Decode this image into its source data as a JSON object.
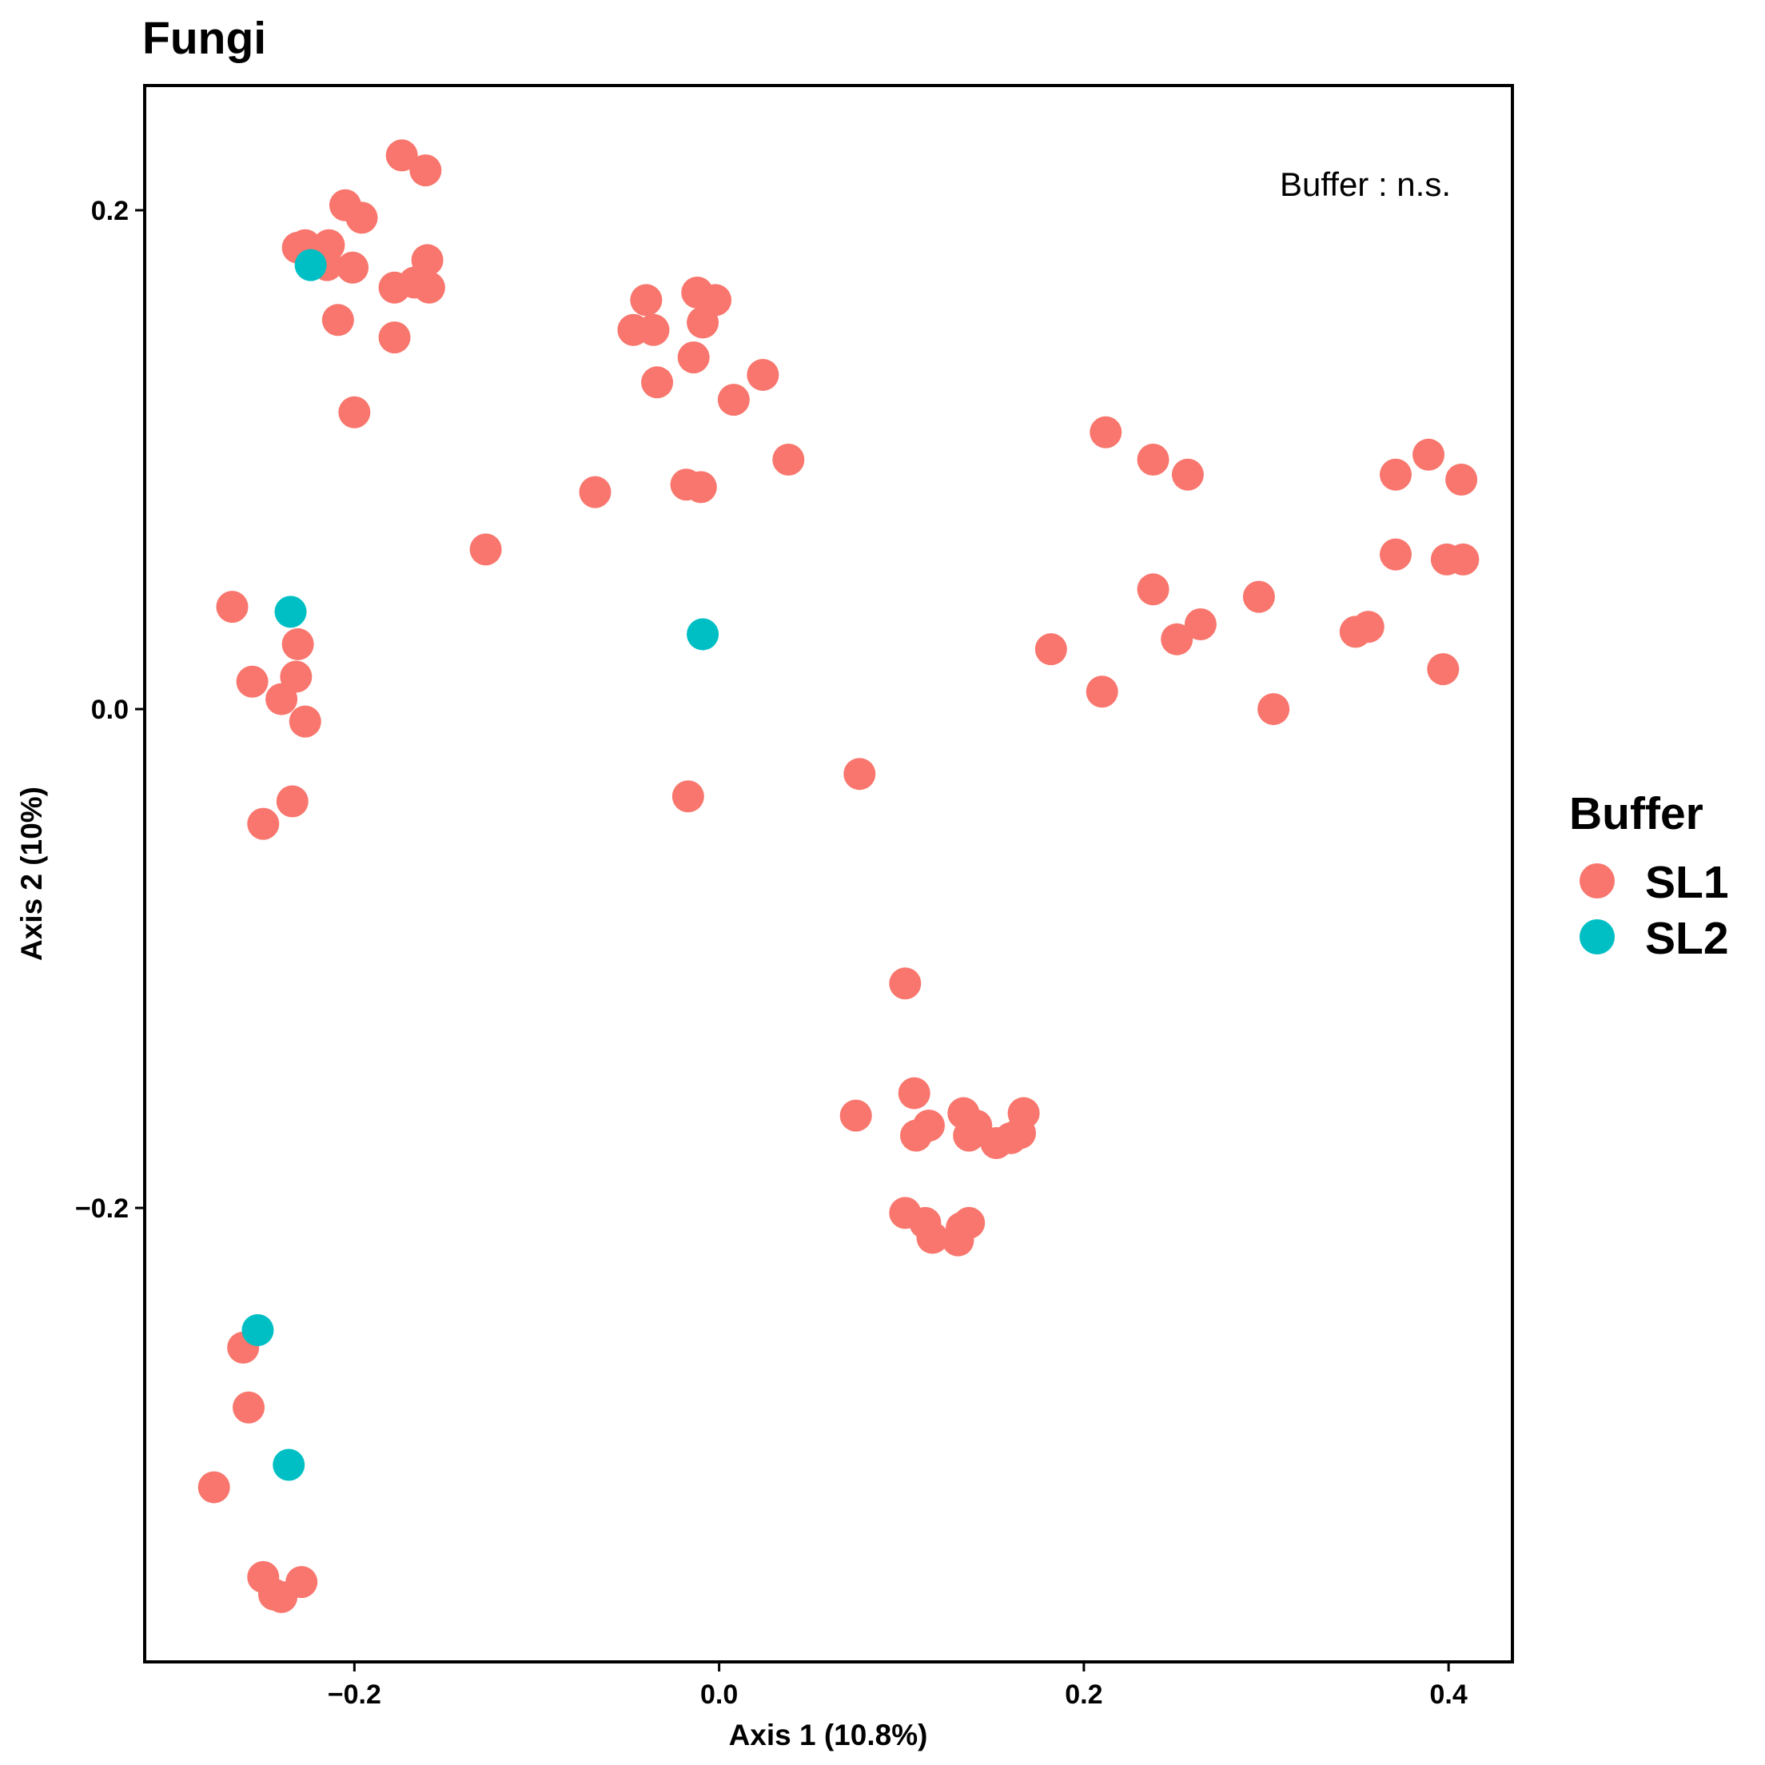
{
  "chart_data": {
    "type": "scatter",
    "title": "Fungi",
    "xlabel": "Axis 1 (10.8%)",
    "ylabel": "Axis 2 (10%)",
    "xlim": [
      -0.315,
      0.435
    ],
    "ylim": [
      -0.382,
      0.25
    ],
    "xticks": [
      -0.2,
      0.0,
      0.2,
      0.4
    ],
    "xtick_labels": [
      "−0.2",
      "0.0",
      "0.2",
      "0.4"
    ],
    "yticks": [
      0.2,
      0.0,
      -0.2
    ],
    "ytick_labels": [
      "0.2",
      "0.0",
      "−0.2"
    ],
    "grid": false,
    "annotation": "Buffer : n.s.",
    "legend": {
      "title": "Buffer",
      "placement": "right"
    },
    "series": [
      {
        "name": "SL1",
        "color": "#F8766D",
        "points": [
          [
            -0.174,
            0.222
          ],
          [
            -0.161,
            0.216
          ],
          [
            -0.205,
            0.202
          ],
          [
            -0.196,
            0.197
          ],
          [
            -0.227,
            0.186
          ],
          [
            -0.231,
            0.185
          ],
          [
            -0.214,
            0.186
          ],
          [
            -0.215,
            0.178
          ],
          [
            -0.201,
            0.177
          ],
          [
            -0.16,
            0.18
          ],
          [
            -0.178,
            0.169
          ],
          [
            -0.167,
            0.171
          ],
          [
            -0.159,
            0.169
          ],
          [
            -0.209,
            0.156
          ],
          [
            -0.178,
            0.149
          ],
          [
            -0.2,
            0.119
          ],
          [
            -0.012,
            0.167
          ],
          [
            -0.002,
            0.164
          ],
          [
            -0.04,
            0.164
          ],
          [
            -0.009,
            0.155
          ],
          [
            -0.047,
            0.152
          ],
          [
            -0.036,
            0.152
          ],
          [
            -0.014,
            0.141
          ],
          [
            0.024,
            0.134
          ],
          [
            -0.034,
            0.131
          ],
          [
            0.008,
            0.124
          ],
          [
            0.038,
            0.1
          ],
          [
            -0.068,
            0.087
          ],
          [
            -0.018,
            0.09
          ],
          [
            -0.01,
            0.089
          ],
          [
            -0.128,
            0.064
          ],
          [
            0.212,
            0.111
          ],
          [
            0.238,
            0.1
          ],
          [
            0.257,
            0.094
          ],
          [
            0.371,
            0.094
          ],
          [
            0.389,
            0.102
          ],
          [
            0.407,
            0.092
          ],
          [
            0.371,
            0.062
          ],
          [
            0.399,
            0.06
          ],
          [
            0.408,
            0.06
          ],
          [
            0.238,
            0.048
          ],
          [
            0.296,
            0.045
          ],
          [
            0.264,
            0.034
          ],
          [
            0.251,
            0.028
          ],
          [
            0.349,
            0.031
          ],
          [
            0.356,
            0.033
          ],
          [
            0.182,
            0.024
          ],
          [
            0.21,
            0.007
          ],
          [
            0.304,
            0.0
          ],
          [
            0.397,
            0.016
          ],
          [
            -0.267,
            0.041
          ],
          [
            -0.231,
            0.026
          ],
          [
            -0.256,
            0.011
          ],
          [
            -0.232,
            0.013
          ],
          [
            -0.24,
            0.004
          ],
          [
            -0.227,
            -0.005
          ],
          [
            -0.234,
            -0.037
          ],
          [
            -0.25,
            -0.046
          ],
          [
            0.077,
            -0.026
          ],
          [
            -0.017,
            -0.035
          ],
          [
            0.102,
            -0.11
          ],
          [
            0.107,
            -0.154
          ],
          [
            0.075,
            -0.163
          ],
          [
            0.134,
            -0.162
          ],
          [
            0.141,
            -0.167
          ],
          [
            0.137,
            -0.171
          ],
          [
            0.167,
            -0.162
          ],
          [
            0.165,
            -0.17
          ],
          [
            0.152,
            -0.174
          ],
          [
            0.16,
            -0.172
          ],
          [
            0.115,
            -0.167
          ],
          [
            0.108,
            -0.171
          ],
          [
            0.102,
            -0.202
          ],
          [
            0.113,
            -0.206
          ],
          [
            0.117,
            -0.212
          ],
          [
            0.131,
            -0.213
          ],
          [
            0.137,
            -0.206
          ],
          [
            0.133,
            -0.208
          ],
          [
            -0.261,
            -0.256
          ],
          [
            -0.258,
            -0.28
          ],
          [
            -0.277,
            -0.312
          ],
          [
            -0.25,
            -0.348
          ],
          [
            -0.229,
            -0.35
          ],
          [
            -0.244,
            -0.355
          ],
          [
            -0.24,
            -0.356
          ]
        ]
      },
      {
        "name": "SL2",
        "color": "#00BFC4",
        "points": [
          [
            -0.224,
            0.178
          ],
          [
            -0.235,
            0.039
          ],
          [
            -0.009,
            0.03
          ],
          [
            -0.253,
            -0.249
          ],
          [
            -0.236,
            -0.303
          ]
        ]
      }
    ]
  }
}
